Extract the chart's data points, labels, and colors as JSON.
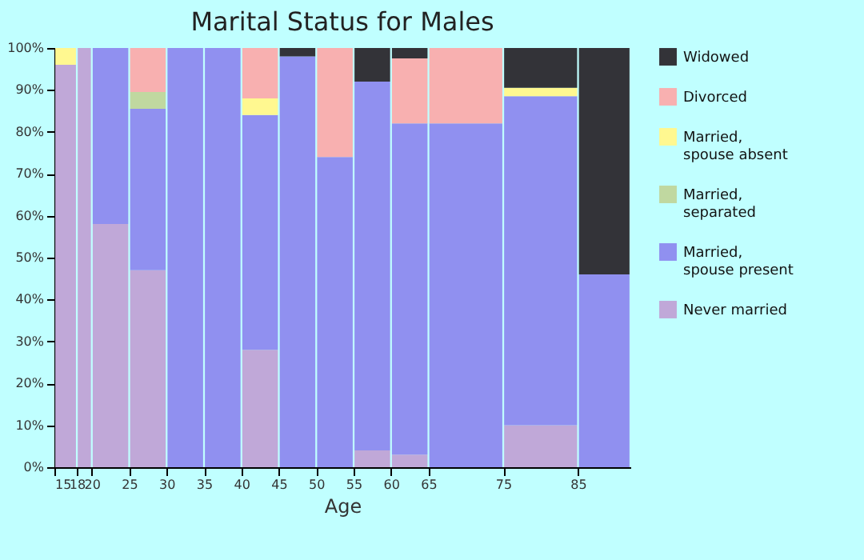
{
  "chart_data": {
    "type": "bar",
    "stacked": true,
    "title": "Marital Status for Males",
    "xlabel": "Age",
    "x": [
      16.5,
      19,
      22.5,
      27.5,
      32.5,
      37.5,
      42.5,
      47.5,
      52.5,
      57.5,
      62.5,
      70,
      80,
      88.5
    ],
    "xlim": [
      15,
      92
    ],
    "xticks": [
      15,
      18,
      20,
      25,
      30,
      35,
      40,
      45,
      50,
      55,
      60,
      65,
      75,
      85
    ],
    "ylim": [
      0,
      100
    ],
    "yticks": [
      {
        "value": 0,
        "label": "0%"
      },
      {
        "value": 10,
        "label": "10%"
      },
      {
        "value": 20,
        "label": "20%"
      },
      {
        "value": 30,
        "label": "30%"
      },
      {
        "value": 40,
        "label": "40%"
      },
      {
        "value": 50,
        "label": "50%"
      },
      {
        "value": 60,
        "label": "60%"
      },
      {
        "value": 70,
        "label": "70%"
      },
      {
        "value": 80,
        "label": "80%"
      },
      {
        "value": 90,
        "label": "90%"
      },
      {
        "value": 100,
        "label": "100%"
      }
    ],
    "legend": "right",
    "series": [
      {
        "name": "Never married",
        "color": "#c0a8d8",
        "values": [
          96,
          100,
          58,
          47,
          0,
          0,
          28,
          0,
          0,
          4,
          3,
          0,
          10,
          0
        ]
      },
      {
        "name": "Married, spouse present",
        "color": "#9090f0",
        "values": [
          0,
          0,
          42,
          38.5,
          100,
          100,
          56,
          98,
          74,
          88,
          79,
          82,
          78.5,
          46
        ]
      },
      {
        "name": "Married, separated",
        "color": "#c0d8a0",
        "values": [
          0,
          0,
          0,
          4,
          0,
          0,
          0,
          0,
          0,
          0,
          0,
          0,
          0,
          0
        ]
      },
      {
        "name": "Married, spouse absent",
        "color": "#fff890",
        "values": [
          4,
          0,
          0,
          0,
          0,
          0,
          4,
          0,
          0,
          0,
          0,
          0,
          2,
          0
        ]
      },
      {
        "name": "Divorced",
        "color": "#f8b0b0",
        "values": [
          0,
          0,
          0,
          10.5,
          0,
          0,
          12,
          0,
          26,
          0,
          15.5,
          18,
          0,
          0
        ]
      },
      {
        "name": "Widowed",
        "color": "#333338",
        "values": [
          0,
          0,
          0,
          0,
          0,
          0,
          0,
          2,
          0,
          8,
          2.5,
          0,
          9.5,
          54
        ]
      }
    ]
  }
}
